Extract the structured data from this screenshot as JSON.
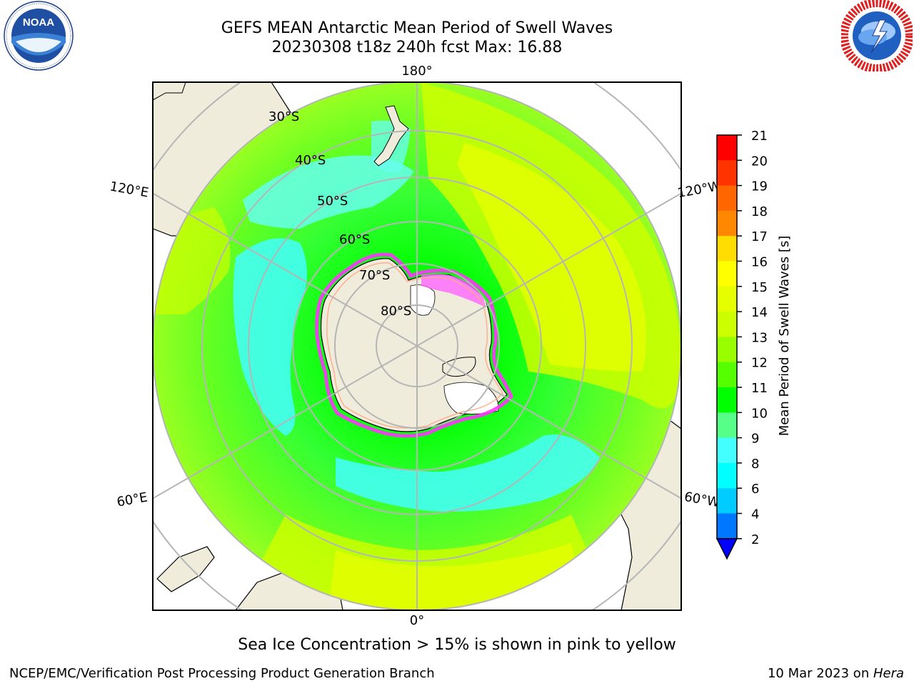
{
  "title": {
    "line1": "GEFS MEAN Antarctic Mean Period of Swell Waves",
    "line2": "20230308 t18z 240h fcst   Max: 16.88"
  },
  "logos": {
    "left": {
      "name": "noaa-logo",
      "text": "NOAA",
      "ring_text": "NATIONAL OCEANIC AND ATMOSPHERIC ADMINISTRATION · U.S. DEPARTMENT OF COMMERCE"
    },
    "right": {
      "name": "nws-logo",
      "ring_text": "NATIONAL WEATHER SERVICE"
    }
  },
  "map": {
    "projection": "south-polar-stereographic",
    "longitude_labels": {
      "top": "180°",
      "bottom": "0°",
      "upper_left": "120°E",
      "upper_right": "120°W",
      "lower_left": "60°E",
      "lower_right": "60°W"
    },
    "latitude_labels": [
      "30°S",
      "40°S",
      "50°S",
      "60°S",
      "70°S",
      "80°S"
    ],
    "colors": {
      "land": "#efecdc",
      "grid": "#b5b5b5",
      "ice_edge": "#ff33ff"
    }
  },
  "colorbar": {
    "label": "Mean Period of Swell Waves [s]",
    "ticks": [
      "21",
      "20",
      "19",
      "18",
      "17",
      "16",
      "15",
      "14",
      "13",
      "12",
      "11",
      "10",
      "9",
      "8",
      "6",
      "4",
      "2"
    ],
    "colors": [
      "#ff0000",
      "#ff3300",
      "#ff6600",
      "#ff8800",
      "#ffaa00",
      "#ffdd00",
      "#ffff00",
      "#e6ff00",
      "#ccff00",
      "#99ff00",
      "#55ff00",
      "#00ff00",
      "#55ff88",
      "#99ffee",
      "#44ffff",
      "#00ffff",
      "#00ccff",
      "#0077ff",
      "#0000ff"
    ]
  },
  "caption": "Sea Ice Concentration > 15% is shown in pink to yellow",
  "footer": {
    "left": "NCEP/EMC/Verification Post Processing Product Generation Branch",
    "right_date": "10 Mar 2023 on ",
    "right_host": "Hera"
  }
}
